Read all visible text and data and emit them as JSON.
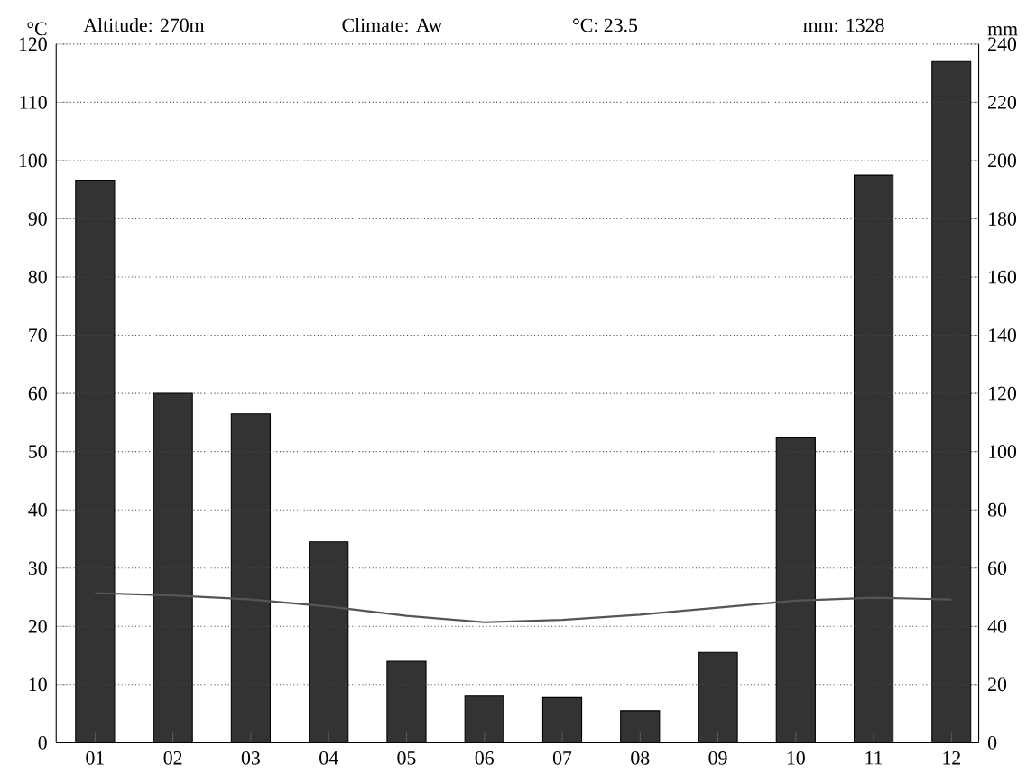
{
  "chart_data": {
    "type": "bar",
    "ylabel": "°C",
    "y2label": "mm",
    "annotations": [
      "Altitude: 270m",
      "Climate: Aw",
      "°C: 23.5",
      "mm: 1328"
    ],
    "categories": [
      "01",
      "02",
      "03",
      "04",
      "05",
      "06",
      "07",
      "08",
      "09",
      "10",
      "11",
      "12"
    ],
    "series": [
      {
        "axis": "y2",
        "color": "#333333",
        "values": [
          193,
          120,
          113,
          69,
          28,
          16,
          15.5,
          11,
          31,
          105,
          195,
          234
        ]
      },
      {
        "type": "line",
        "color": "#555555",
        "values": [
          25.7,
          25.3,
          24.6,
          23.4,
          21.8,
          20.7,
          21.1,
          22.0,
          23.2,
          24.4,
          24.9,
          24.6
        ]
      }
    ],
    "ylim": [
      0,
      120
    ],
    "yticks": [
      0,
      10,
      20,
      30,
      40,
      50,
      60,
      70,
      80,
      90,
      100,
      110,
      120
    ],
    "y2lim": [
      0,
      240
    ],
    "y2ticks": [
      0,
      20,
      40,
      60,
      80,
      100,
      120,
      140,
      160,
      180,
      200,
      220,
      240
    ],
    "grid": "y"
  }
}
